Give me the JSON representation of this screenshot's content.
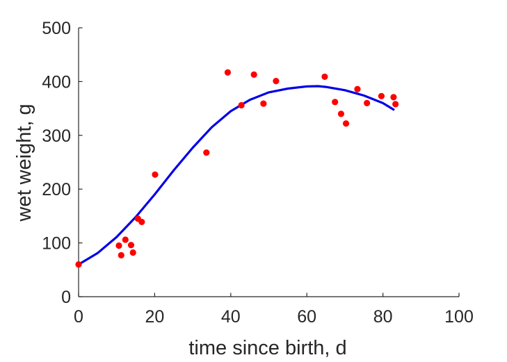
{
  "chart_data": {
    "type": "scatter",
    "title": "",
    "xlabel": "time since birth, d",
    "ylabel": "wet weight, g",
    "xlim": [
      0,
      100
    ],
    "ylim": [
      0,
      500
    ],
    "xticks": [
      0,
      20,
      40,
      60,
      80,
      100
    ],
    "yticks": [
      0,
      100,
      200,
      300,
      400,
      500
    ],
    "grid": false,
    "legend": "none",
    "series": [
      {
        "type": "scatter",
        "color": "#ff0000",
        "points": [
          [
            0,
            60
          ],
          [
            10.6,
            95
          ],
          [
            11.2,
            77
          ],
          [
            12.3,
            106
          ],
          [
            13.8,
            96
          ],
          [
            14.3,
            82
          ],
          [
            15.6,
            145
          ],
          [
            16.6,
            139
          ],
          [
            20.1,
            227
          ],
          [
            33.6,
            268
          ],
          [
            39.2,
            417
          ],
          [
            42.8,
            356
          ],
          [
            46.1,
            413
          ],
          [
            48.6,
            359
          ],
          [
            51.9,
            401
          ],
          [
            64.7,
            409
          ],
          [
            67.4,
            362
          ],
          [
            69.0,
            340
          ],
          [
            70.3,
            322
          ],
          [
            73.3,
            386
          ],
          [
            75.8,
            360
          ],
          [
            79.6,
            373
          ],
          [
            82.8,
            371
          ],
          [
            83.3,
            358
          ]
        ]
      },
      {
        "type": "line",
        "color": "#0000e6",
        "points": [
          [
            0,
            60
          ],
          [
            5,
            81
          ],
          [
            10,
            111
          ],
          [
            15,
            148
          ],
          [
            20,
            190
          ],
          [
            25,
            235
          ],
          [
            30,
            277
          ],
          [
            35,
            315
          ],
          [
            40,
            345
          ],
          [
            45,
            366
          ],
          [
            50,
            380
          ],
          [
            55,
            387
          ],
          [
            60,
            391
          ],
          [
            63,
            391.5
          ],
          [
            65,
            390
          ],
          [
            70,
            384
          ],
          [
            75,
            374
          ],
          [
            80,
            360
          ],
          [
            83,
            347
          ]
        ]
      }
    ]
  }
}
